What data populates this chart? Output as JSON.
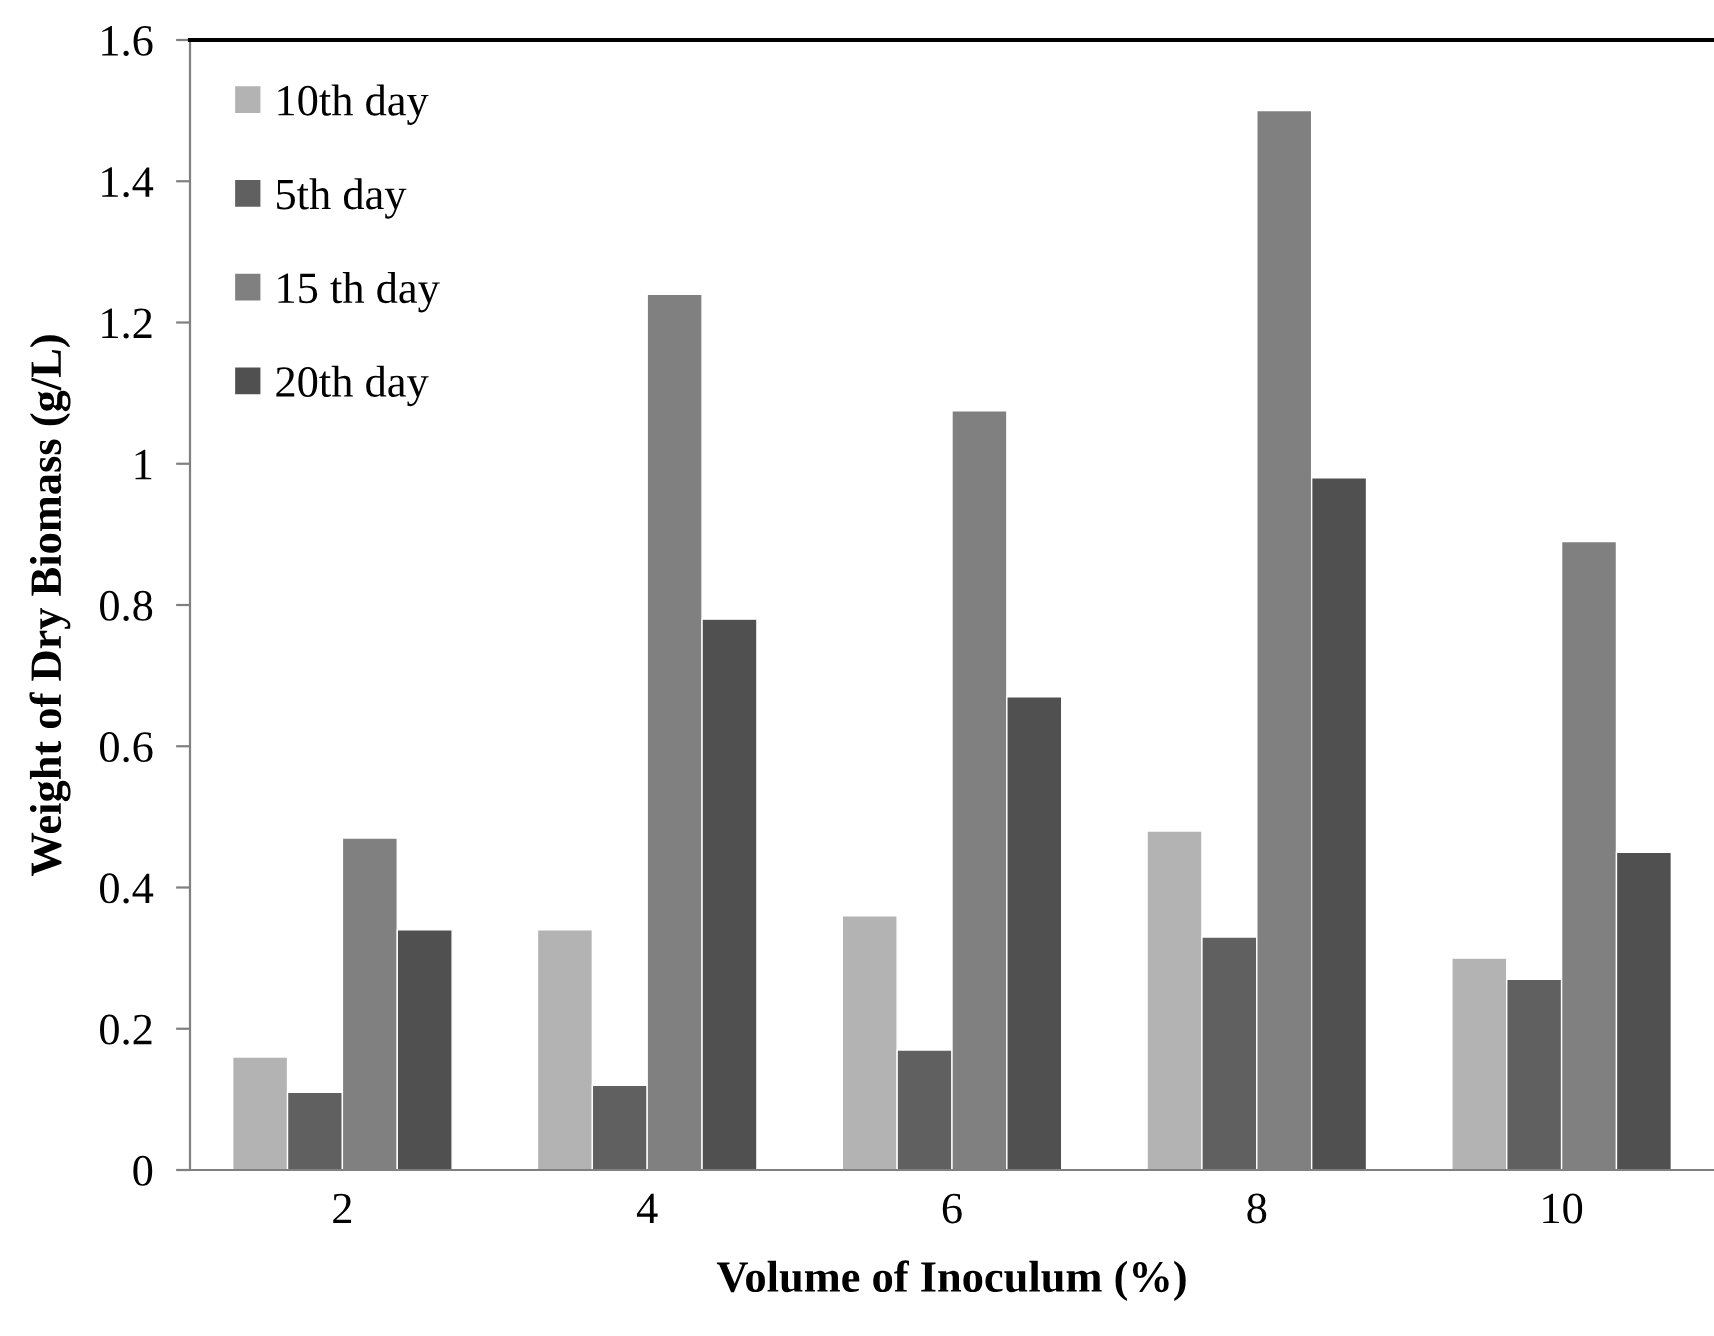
{
  "chart_data": {
    "type": "bar",
    "xlabel": "Volume of Inoculum (%)",
    "ylabel": "Weight of Dry Biomass (g/L)",
    "categories": [
      "2",
      "4",
      "6",
      "8",
      "10"
    ],
    "series": [
      {
        "name": "10th day",
        "color": "#b3b3b3",
        "values": [
          0.16,
          0.34,
          0.36,
          0.48,
          0.3
        ]
      },
      {
        "name": "5th day",
        "color": "#606060",
        "values": [
          0.11,
          0.12,
          0.17,
          0.33,
          0.27
        ]
      },
      {
        "name": "15 th day",
        "color": "#808080",
        "values": [
          0.47,
          1.24,
          1.075,
          1.5,
          0.89
        ]
      },
      {
        "name": "20th day",
        "color": "#505050",
        "values": [
          0.34,
          0.78,
          0.67,
          0.98,
          0.45
        ]
      }
    ],
    "ylim": [
      0,
      1.6
    ],
    "yticks": [
      {
        "value": 0,
        "label": "0"
      },
      0.2,
      0.4,
      0.6,
      0.8,
      {
        "value": 1,
        "label": "1"
      },
      1.2,
      1.4,
      1.6
    ],
    "grid": false,
    "legend": "top left"
  }
}
